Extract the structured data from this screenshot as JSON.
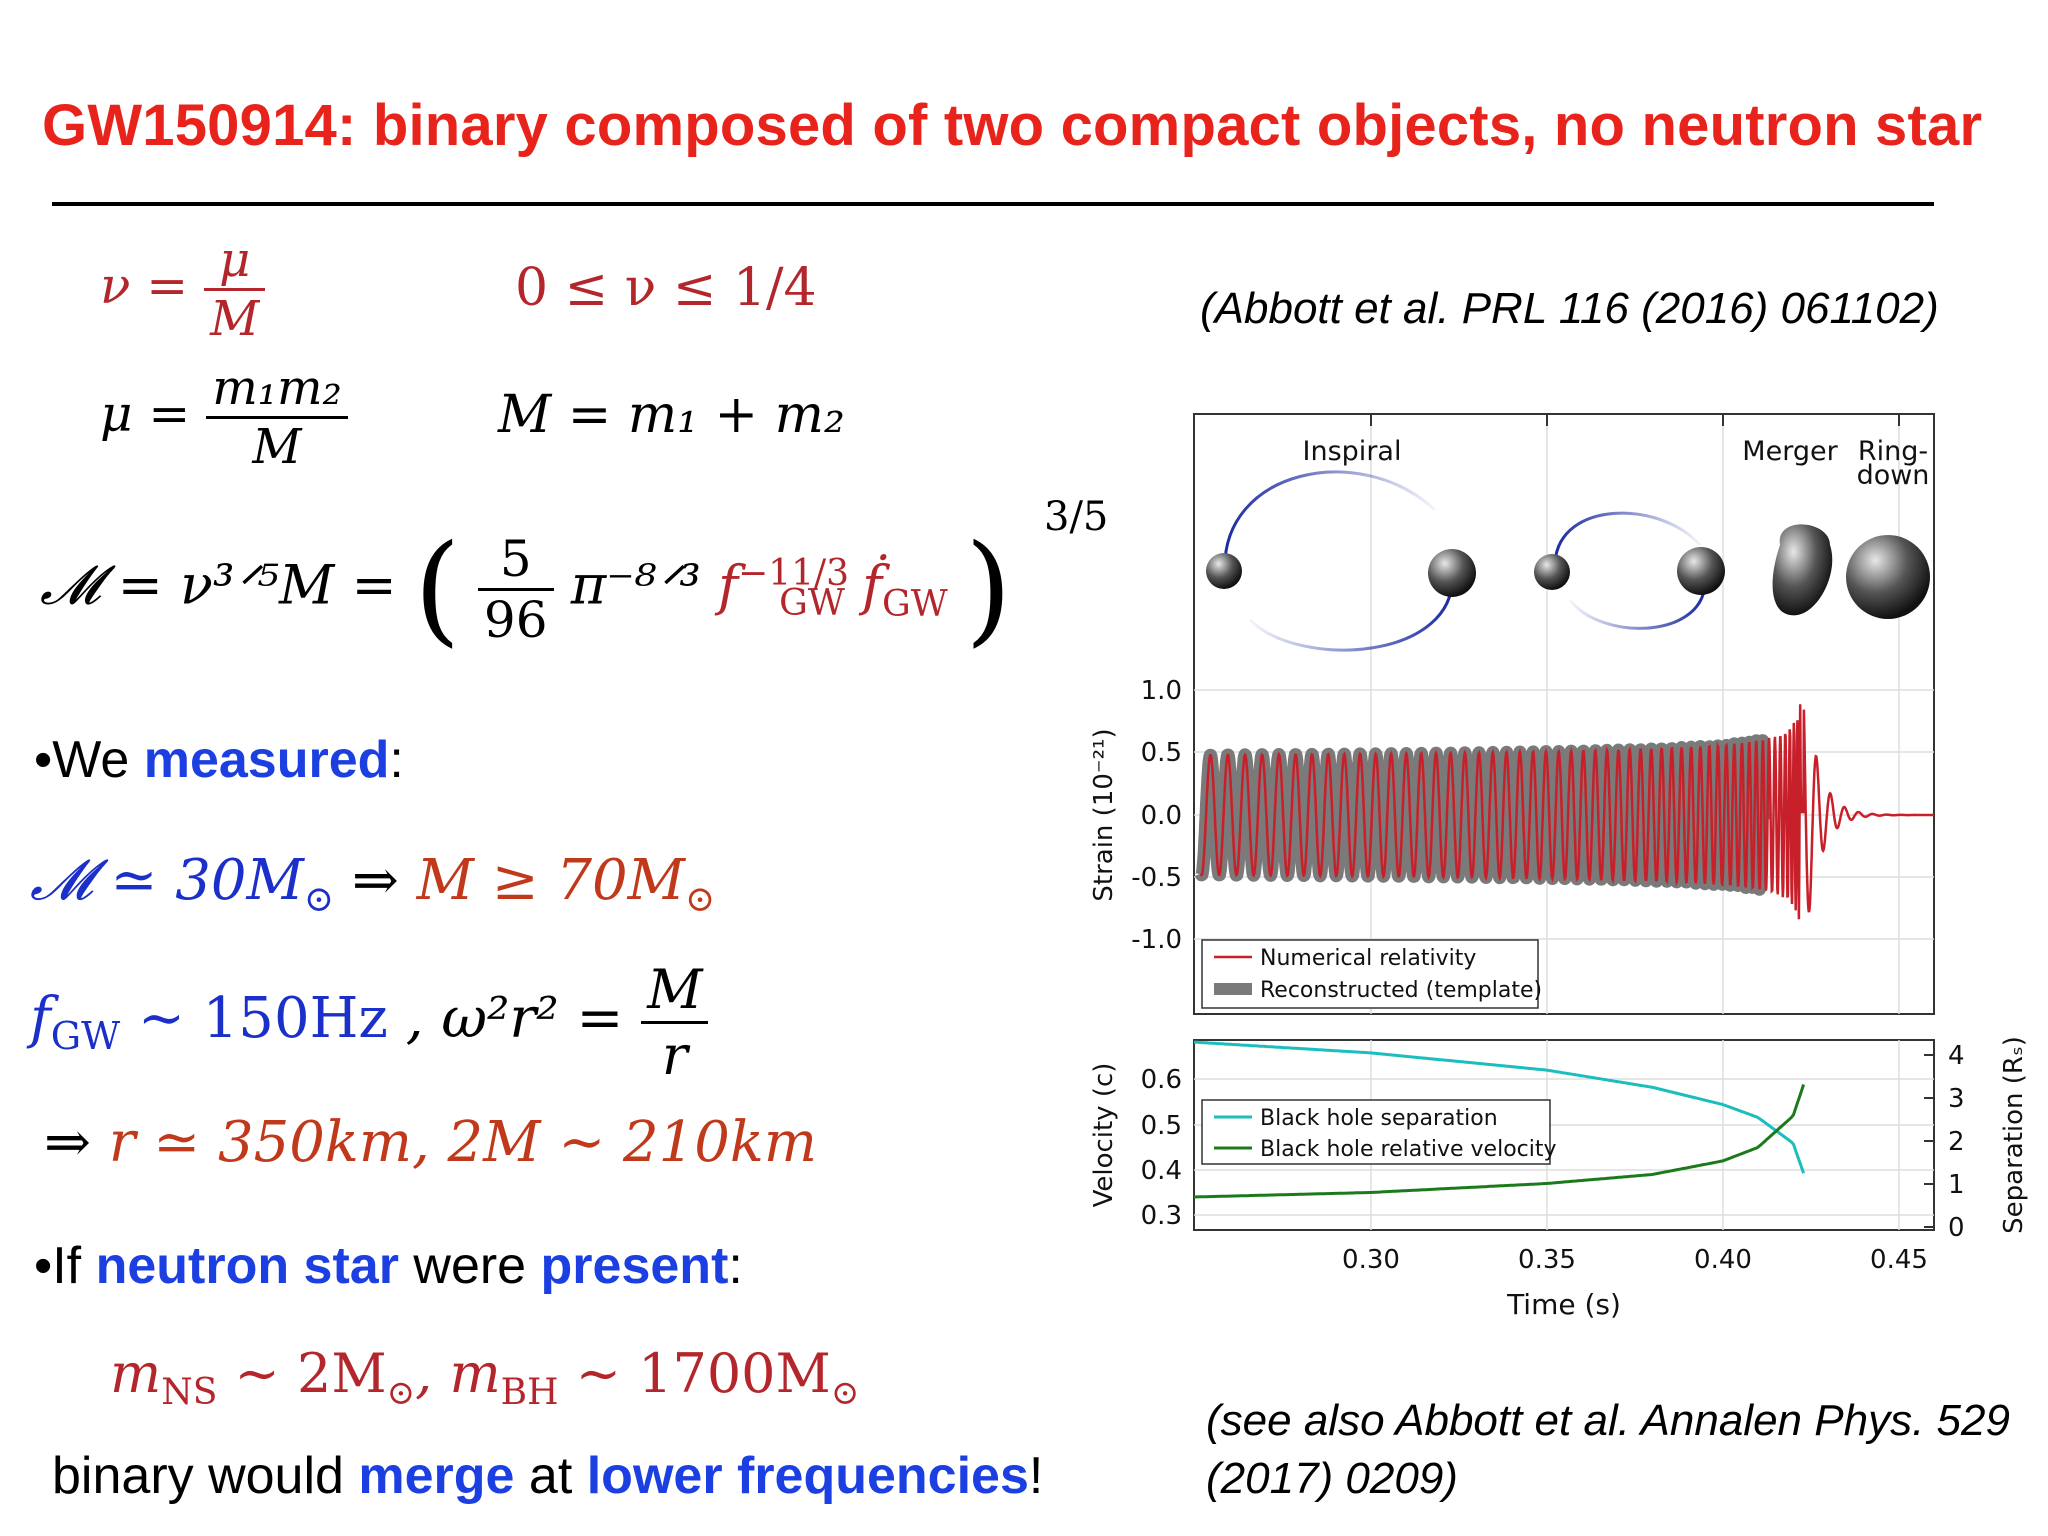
{
  "title": "GW150914: binary composed of two compact objects, no neutron star",
  "equations": {
    "nu_lhs": "ν =",
    "nu_num": "μ",
    "nu_den": "M",
    "nu_range": "0 ≤ ν ≤ 1/4",
    "mu_lhs": "μ =",
    "mu_num": "m₁m₂",
    "mu_den": "M",
    "total_mass": "M = m₁ + m₂",
    "chirp_lhs": "𝓜 = ν³ᐟ⁵M =",
    "chirp_frac_num": "5",
    "chirp_frac_den": "96",
    "chirp_pi": "π⁻⁸ᐟ³",
    "chirp_f": "f",
    "chirp_f_sup": "−11/3",
    "chirp_f_sub": "GW",
    "chirp_fdot": "ḟ",
    "chirp_fdot_sub": "GW",
    "chirp_exp": "3/5"
  },
  "bullets": {
    "measured_pre": "We ",
    "measured_kw": "measured",
    "measured_post": ":",
    "ns_pre": "If ",
    "ns_kw1": "neutron star",
    "ns_mid": " were ",
    "ns_kw2": "present",
    "ns_post": ":"
  },
  "results": {
    "chirp_mass": "𝓜 ≃ 30M",
    "implies": "⇒",
    "total_mass": "M ≥ 70M",
    "fgw": "f",
    "fgw_sub": "GW",
    "fgw_val": " ∼ 150Hz",
    "kepler": ", ω²r² =",
    "kepler_num": "M",
    "kepler_den": "r",
    "radius_implies": "⇒",
    "radius": "r ≃ 350km, 2M ∼ 210km",
    "ns_masses": "m",
    "ns_sub": "NS",
    "ns_val": " ∼ 2M",
    "bh_sep": ", m",
    "bh_sub": "BH",
    "bh_val": " ∼ 1700M",
    "sun": "⊙"
  },
  "conclusion": {
    "pre": "binary would ",
    "kw1": "merge",
    "mid": " at ",
    "kw2": "lower frequencies",
    "post": "!"
  },
  "citations": {
    "primary": "(Abbott et al. PRL 116 (2016) 061102)",
    "secondary_line1": "(see also Abbott et al. Annalen Phys. 529",
    "secondary_line2": "(2017) 0209)"
  },
  "figure": {
    "phase_labels": [
      "Inspiral",
      "Merger",
      "Ring-",
      "down"
    ],
    "top_ylabel": "Strain (10⁻²¹)",
    "bottom_ylabel_left": "Velocity (c)",
    "bottom_ylabel_right": "Separation (Rₛ)",
    "xlabel": "Time (s)",
    "legend_top": [
      "Numerical relativity",
      "Reconstructed (template)"
    ],
    "legend_bottom": [
      "Black hole separation",
      "Black hole relative velocity"
    ]
  },
  "chart_data": [
    {
      "type": "line",
      "ylabel": "Strain (10⁻²¹)",
      "xlim": [
        0.25,
        0.46
      ],
      "ylim": [
        -1.4,
        1.4
      ],
      "yticks": [
        1.0,
        0.5,
        0.0,
        -0.5,
        -1.0
      ],
      "series": [
        {
          "name": "Numerical relativity",
          "color": "#c8202a",
          "description_points": {
            "x": [
              0.255,
              0.27,
              0.32,
              0.37,
              0.4,
              0.415,
              0.42,
              0.423,
              0.43,
              0.46
            ],
            "y_amplitude": [
              0.45,
              0.5,
              0.55,
              0.6,
              0.8,
              1.1,
              1.2,
              0.4,
              0.05,
              0.0
            ]
          }
        },
        {
          "name": "Reconstructed (template)",
          "color": "#808080"
        }
      ]
    },
    {
      "type": "line",
      "ylabel": "Velocity (c)",
      "y2label": "Separation (Rₛ)",
      "xlabel": "Time (s)",
      "xlim": [
        0.25,
        0.46
      ],
      "xticks": [
        0.3,
        0.35,
        0.4,
        0.45
      ],
      "ylim": [
        0.28,
        0.66
      ],
      "yticks": [
        0.3,
        0.4,
        0.5,
        0.6
      ],
      "y2lim": [
        -0.3,
        4.5
      ],
      "y2ticks": [
        0,
        1,
        2,
        3,
        4
      ],
      "series": [
        {
          "name": "Black hole separation",
          "color": "#1bbdbd",
          "axis": "right",
          "x": [
            0.25,
            0.3,
            0.35,
            0.38,
            0.4,
            0.41,
            0.42,
            0.423
          ],
          "y": [
            4.3,
            4.05,
            3.65,
            3.25,
            2.85,
            2.55,
            1.95,
            1.25
          ]
        },
        {
          "name": "Black hole relative velocity",
          "color": "#1b7a1b",
          "axis": "left",
          "x": [
            0.25,
            0.3,
            0.35,
            0.38,
            0.4,
            0.41,
            0.42,
            0.423
          ],
          "y": [
            0.34,
            0.35,
            0.37,
            0.39,
            0.42,
            0.45,
            0.52,
            0.59
          ]
        }
      ]
    }
  ]
}
